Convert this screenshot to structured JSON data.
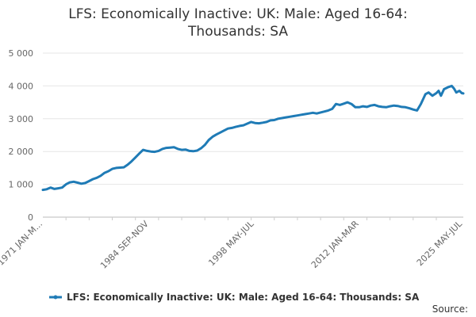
{
  "chart_data": {
    "type": "line",
    "title_lines": [
      "LFS: Economically Inactive: UK: Male: Aged 16-64:",
      "Thousands: SA"
    ],
    "xlabel": "",
    "ylabel": "",
    "ylim": [
      0,
      5000
    ],
    "yticks": [
      0,
      1000,
      2000,
      3000,
      4000,
      5000
    ],
    "ytick_labels": [
      "0",
      "1 000",
      "2 000",
      "3 000",
      "4 000",
      "5 000"
    ],
    "x_tick_labels": [
      "1971 JAN-M...",
      "1984 SEP-NOV",
      "1998 MAY-JUL",
      "2012 JAN-MAR",
      "2025 MAY-JUL"
    ],
    "x_tick_years": [
      1971.0,
      1984.75,
      1998.4,
      2012.0,
      2025.4
    ],
    "x_range": [
      1971.0,
      2025.5
    ],
    "grid": true,
    "legend_position": "bottom",
    "series": [
      {
        "name": "LFS: Economically Inactive: UK: Male: Aged 16-64: Thousands: SA",
        "color": "#1f7bb6",
        "x": [
          1971.0,
          1971.5,
          1972.0,
          1972.5,
          1973.0,
          1973.5,
          1974.0,
          1974.5,
          1975.0,
          1975.5,
          1976.0,
          1976.5,
          1977.0,
          1977.5,
          1978.0,
          1978.5,
          1979.0,
          1979.5,
          1980.0,
          1980.5,
          1981.0,
          1981.5,
          1982.0,
          1982.5,
          1983.0,
          1983.5,
          1984.0,
          1984.5,
          1985.0,
          1985.5,
          1986.0,
          1986.5,
          1987.0,
          1987.5,
          1988.0,
          1988.5,
          1989.0,
          1989.5,
          1990.0,
          1990.5,
          1991.0,
          1991.5,
          1992.0,
          1992.5,
          1993.0,
          1993.5,
          1994.0,
          1994.5,
          1995.0,
          1995.5,
          1996.0,
          1996.5,
          1997.0,
          1997.5,
          1998.0,
          1998.5,
          1999.0,
          1999.5,
          2000.0,
          2000.5,
          2001.0,
          2001.5,
          2002.0,
          2002.5,
          2003.0,
          2003.5,
          2004.0,
          2004.5,
          2005.0,
          2005.5,
          2006.0,
          2006.5,
          2007.0,
          2007.5,
          2008.0,
          2008.5,
          2009.0,
          2009.5,
          2010.0,
          2010.5,
          2011.0,
          2011.5,
          2012.0,
          2012.5,
          2013.0,
          2013.5,
          2014.0,
          2014.5,
          2015.0,
          2015.5,
          2016.0,
          2016.5,
          2017.0,
          2017.5,
          2018.0,
          2018.5,
          2019.0,
          2019.5,
          2020.0,
          2020.3,
          2020.6,
          2021.0,
          2021.5,
          2022.0,
          2022.3,
          2022.6,
          2023.0,
          2023.5,
          2024.0,
          2024.3,
          2024.6,
          2025.0,
          2025.3,
          2025.5
        ],
        "values": [
          830,
          850,
          900,
          860,
          880,
          900,
          1000,
          1060,
          1080,
          1050,
          1020,
          1040,
          1100,
          1160,
          1200,
          1260,
          1350,
          1400,
          1470,
          1500,
          1510,
          1520,
          1600,
          1700,
          1820,
          1940,
          2050,
          2020,
          2000,
          1990,
          2020,
          2080,
          2110,
          2120,
          2130,
          2080,
          2050,
          2060,
          2020,
          2010,
          2030,
          2100,
          2200,
          2350,
          2450,
          2520,
          2580,
          2640,
          2700,
          2720,
          2750,
          2780,
          2800,
          2850,
          2900,
          2870,
          2860,
          2880,
          2900,
          2950,
          2960,
          3000,
          3020,
          3040,
          3060,
          3080,
          3100,
          3120,
          3140,
          3160,
          3180,
          3160,
          3190,
          3220,
          3250,
          3300,
          3450,
          3420,
          3460,
          3500,
          3450,
          3350,
          3350,
          3380,
          3360,
          3400,
          3420,
          3380,
          3360,
          3350,
          3380,
          3400,
          3390,
          3360,
          3350,
          3320,
          3280,
          3250,
          3450,
          3600,
          3750,
          3800,
          3700,
          3780,
          3850,
          3700,
          3900,
          3960,
          4000,
          3920,
          3800,
          3850,
          3780,
          3770
        ]
      }
    ]
  },
  "legend": {
    "label": "LFS: Economically Inactive: UK: Male: Aged 16-64: Thousands: SA"
  },
  "source_label": "Source:"
}
